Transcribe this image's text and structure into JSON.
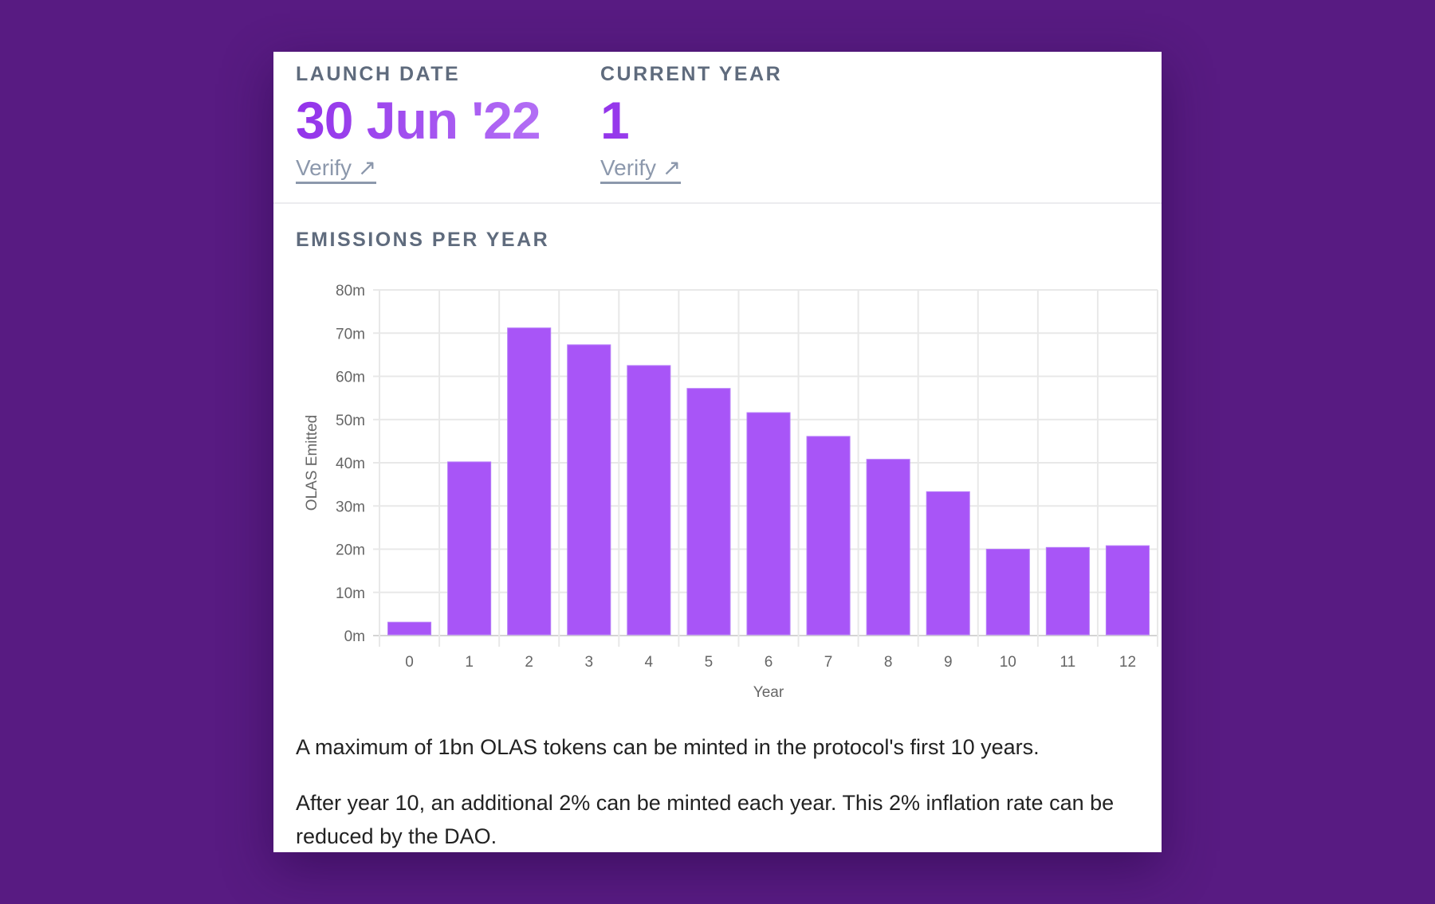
{
  "stats": [
    {
      "label": "LAUNCH DATE",
      "value": "30 Jun '22",
      "verify": "Verify ↗"
    },
    {
      "label": "CURRENT YEAR",
      "value": "1",
      "verify": "Verify ↗"
    }
  ],
  "section_title": "EMISSIONS PER YEAR",
  "chart_data": {
    "type": "bar",
    "title": "EMISSIONS PER YEAR",
    "xlabel": "Year",
    "ylabel": "OLAS Emitted",
    "categories": [
      "0",
      "1",
      "2",
      "3",
      "4",
      "5",
      "6",
      "7",
      "8",
      "9",
      "10",
      "11",
      "12"
    ],
    "values": [
      3.1,
      40.2,
      71.2,
      67.3,
      62.5,
      57.2,
      51.6,
      46.1,
      40.8,
      33.3,
      20.0,
      20.4,
      20.8
    ],
    "unit": "m",
    "ylim": [
      0,
      80
    ],
    "yticks": [
      "0m",
      "10m",
      "20m",
      "30m",
      "40m",
      "50m",
      "60m",
      "70m",
      "80m"
    ],
    "grid": true,
    "bar_color": "#a855f7"
  },
  "paragraphs": [
    "A maximum of 1bn OLAS tokens can be minted in the protocol's first 10 years.",
    "After year 10, an additional 2% can be minted each year. This 2% inflation rate can be reduced by the DAO."
  ]
}
